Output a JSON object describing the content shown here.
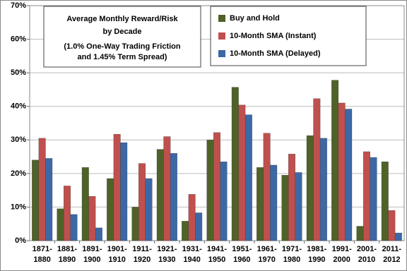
{
  "chart_data": {
    "type": "bar",
    "title": [
      "Average Monthly Reward/Risk",
      "by Decade"
    ],
    "subtitle": [
      "(1.0% One-Way Trading Friction",
      "and 1.45% Term Spread)"
    ],
    "categories": [
      [
        "1871-",
        "1880"
      ],
      [
        "1881-",
        "1890"
      ],
      [
        "1891-",
        "1900"
      ],
      [
        "1901-",
        "1910"
      ],
      [
        "1911-",
        "1920"
      ],
      [
        "1921-",
        "1930"
      ],
      [
        "1931-",
        "1940"
      ],
      [
        "1941-",
        "1950"
      ],
      [
        "1951-",
        "1960"
      ],
      [
        "1961-",
        "1970"
      ],
      [
        "1971-",
        "1980"
      ],
      [
        "1981-",
        "1990"
      ],
      [
        "1991-",
        "2000"
      ],
      [
        "2001-",
        "2010"
      ],
      [
        "2011-",
        "2012"
      ]
    ],
    "series": [
      {
        "name": "Buy and Hold",
        "color": "#4f6228",
        "values": [
          24,
          9.5,
          21.8,
          18.5,
          10,
          27.2,
          5.8,
          30,
          45.7,
          21.8,
          19.5,
          31.3,
          47.8,
          4.3,
          23.5
        ]
      },
      {
        "name": "10-Month SMA (Instant)",
        "color": "#c0504d",
        "values": [
          30.5,
          16.3,
          13.2,
          31.7,
          23,
          31,
          13.8,
          32.2,
          40.4,
          32,
          25.8,
          42.3,
          41,
          26.5,
          9
        ]
      },
      {
        "name": "10-Month SMA (Delayed)",
        "color": "#3c69a6",
        "values": [
          24.5,
          7.8,
          3.8,
          29.2,
          18.5,
          26,
          8.3,
          23.5,
          37.5,
          22.5,
          20.3,
          30.5,
          39.2,
          24.8,
          2.3
        ]
      }
    ],
    "ylim": [
      0,
      70
    ],
    "yticks": [
      {
        "value": 0,
        "label": "0%"
      },
      {
        "value": 10,
        "label": "10%"
      },
      {
        "value": 20,
        "label": "20%"
      },
      {
        "value": 30,
        "label": "30%"
      },
      {
        "value": 40,
        "label": "40%"
      },
      {
        "value": 50,
        "label": "50%"
      },
      {
        "value": 60,
        "label": "60%"
      },
      {
        "value": 70,
        "label": "70%"
      }
    ],
    "grid": true,
    "legend": "top-right"
  }
}
